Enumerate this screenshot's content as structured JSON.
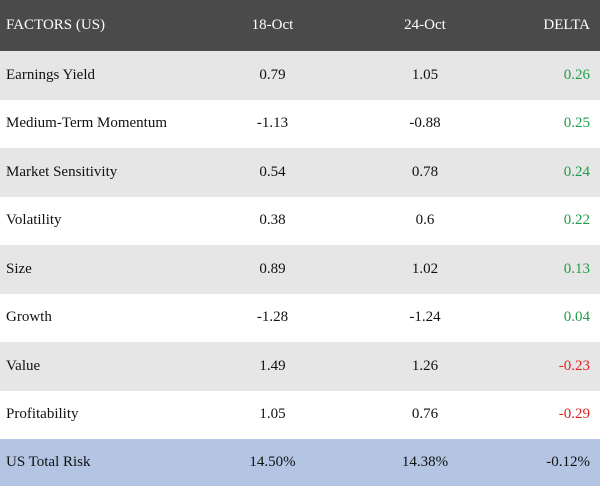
{
  "colors": {
    "header_bg": "#4a4a4a",
    "header_text": "#ffffff",
    "row_shaded": "#e6e6e6",
    "row_plain": "#ffffff",
    "total_bg": "#b3c5e3",
    "positive": "#1e9e48",
    "negative": "#e02020",
    "neutral": "#111111"
  },
  "table": {
    "headers": [
      "FACTORS (US)",
      "18-Oct",
      "24-Oct",
      "DELTA"
    ],
    "rows": [
      {
        "factor": "Earnings Yield",
        "oct18": "0.79",
        "oct24": "1.05",
        "delta": "0.26",
        "sign": "positive"
      },
      {
        "factor": "Medium-Term Momentum",
        "oct18": "-1.13",
        "oct24": "-0.88",
        "delta": "0.25",
        "sign": "positive"
      },
      {
        "factor": "Market Sensitivity",
        "oct18": "0.54",
        "oct24": "0.78",
        "delta": "0.24",
        "sign": "positive"
      },
      {
        "factor": "Volatility",
        "oct18": "0.38",
        "oct24": "0.6",
        "delta": "0.22",
        "sign": "positive"
      },
      {
        "factor": "Size",
        "oct18": "0.89",
        "oct24": "1.02",
        "delta": "0.13",
        "sign": "positive"
      },
      {
        "factor": "Growth",
        "oct18": "-1.28",
        "oct24": "-1.24",
        "delta": "0.04",
        "sign": "positive"
      },
      {
        "factor": "Value",
        "oct18": "1.49",
        "oct24": "1.26",
        "delta": "-0.23",
        "sign": "negative"
      },
      {
        "factor": "Profitability",
        "oct18": "1.05",
        "oct24": "0.76",
        "delta": "-0.29",
        "sign": "negative"
      }
    ],
    "total": {
      "factor": "US Total Risk",
      "oct18": "14.50%",
      "oct24": "14.38%",
      "delta": "-0.12%",
      "sign": "neutral"
    }
  }
}
